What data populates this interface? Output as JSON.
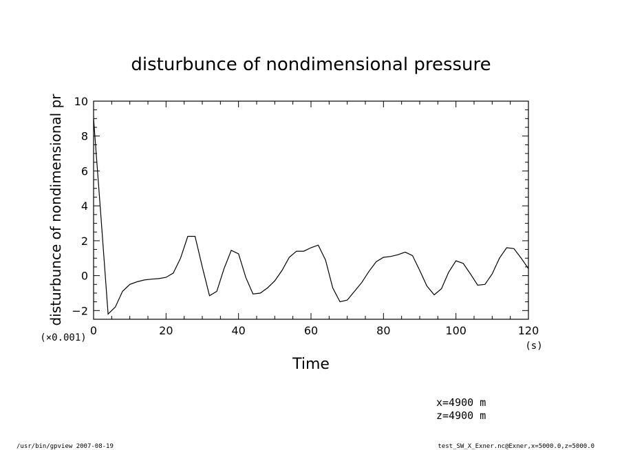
{
  "chart_data": {
    "type": "line",
    "title": "disturbunce of nondimensional pressure",
    "xlabel": "Time",
    "xunit": "(s)",
    "ylabel": "disturbunce of nondimensional pr",
    "yscale_label": "(×0.001)",
    "xlim": [
      0,
      120
    ],
    "ylim": [
      -2.5,
      10
    ],
    "xticks": [
      0,
      20,
      40,
      60,
      80,
      100,
      120
    ],
    "yticks": [
      -2,
      0,
      2,
      4,
      6,
      8,
      10
    ],
    "ytick_labels": [
      "−2",
      "0",
      "2",
      "4",
      "6",
      "8",
      "10"
    ],
    "series": [
      {
        "x": [
          0,
          2,
          4,
          6,
          8,
          10,
          12,
          14,
          16,
          18,
          20,
          22,
          24,
          26,
          28,
          30,
          32,
          34,
          36,
          38,
          40,
          42,
          44,
          46,
          48,
          50,
          52,
          54,
          56,
          58,
          60,
          62,
          64,
          66,
          68,
          70,
          72,
          74,
          76,
          78,
          80,
          82,
          84,
          86,
          88,
          90,
          92,
          94,
          96,
          98,
          100,
          102,
          104,
          106,
          108,
          110,
          112,
          114,
          116,
          118,
          120
        ],
        "y": [
          9.0,
          3.5,
          -2.2,
          -1.8,
          -0.9,
          -0.5,
          -0.35,
          -0.25,
          -0.2,
          -0.17,
          -0.1,
          0.15,
          1.0,
          2.25,
          2.25,
          0.5,
          -1.15,
          -0.9,
          0.4,
          1.45,
          1.25,
          -0.1,
          -1.05,
          -1.0,
          -0.7,
          -0.3,
          0.3,
          1.05,
          1.4,
          1.4,
          1.6,
          1.75,
          0.9,
          -0.7,
          -1.5,
          -1.4,
          -0.9,
          -0.4,
          0.25,
          0.8,
          1.05,
          1.1,
          1.2,
          1.35,
          1.15,
          0.3,
          -0.6,
          -1.1,
          -0.75,
          0.2,
          0.85,
          0.7,
          0.1,
          -0.55,
          -0.5,
          0.1,
          1.0,
          1.6,
          1.55,
          1.0,
          0.4
        ]
      }
    ]
  },
  "info": {
    "line1": "x=4900  m",
    "line2": "z=4900  m"
  },
  "footer": {
    "left": "/usr/bin/gpview   2007-08-19",
    "right": "test_SW_X_Exner.nc@Exner,x=5000.0,z=5000.0"
  },
  "colors": {
    "line": "#000000",
    "background": "#ffffff"
  }
}
